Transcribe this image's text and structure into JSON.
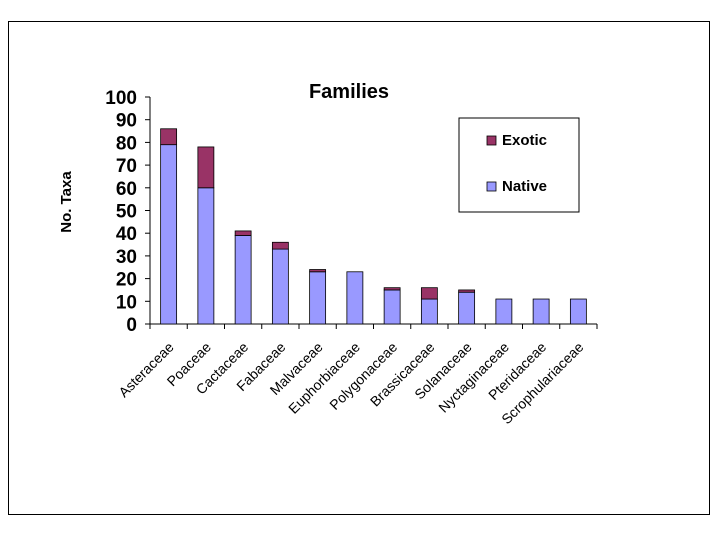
{
  "chart_data": {
    "type": "bar",
    "stacked": true,
    "title": "Families",
    "xlabel": "",
    "ylabel": "No. Taxa",
    "ylim": [
      0,
      100
    ],
    "yticks": [
      0,
      10,
      20,
      30,
      40,
      50,
      60,
      70,
      80,
      90,
      100
    ],
    "grid": false,
    "legend_position": "top-right",
    "categories": [
      "Asteraceae",
      "Poaceae",
      "Cactaceae",
      "Fabaceae",
      "Malvaceae",
      "Euphorbiaceae",
      "Polygonaceae",
      "Brassicaceae",
      "Solanaceae",
      "Nyctaginaceae",
      "Pteridaceae",
      "Scrophulariaceae"
    ],
    "series": [
      {
        "name": "Native",
        "color": "#9999ff",
        "values": [
          79,
          60,
          39,
          33,
          23,
          23,
          15,
          11,
          14,
          11,
          11,
          11
        ]
      },
      {
        "name": "Exotic",
        "color": "#993366",
        "values": [
          7,
          18,
          2,
          3,
          1,
          0,
          1,
          5,
          1,
          0,
          0,
          0
        ]
      }
    ],
    "legend_order": [
      "Exotic",
      "Native"
    ]
  }
}
